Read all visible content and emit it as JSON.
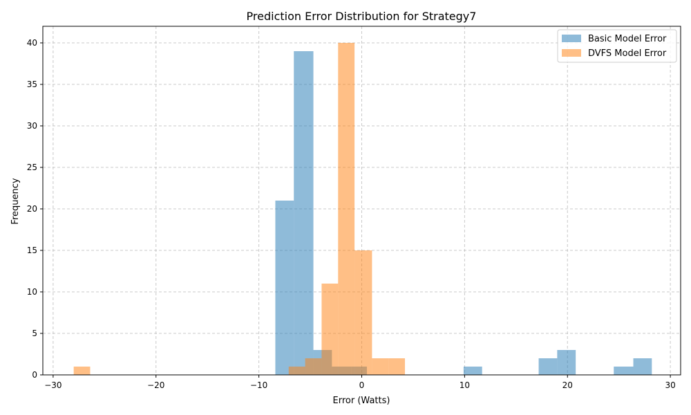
{
  "chart_data": {
    "type": "bar",
    "title": "Prediction Error Distribution for Strategy7",
    "xlabel": "Error (Watts)",
    "ylabel": "Frequency",
    "xlim": [
      -31,
      31
    ],
    "ylim": [
      0,
      42
    ],
    "xticks": [
      -30,
      -20,
      -10,
      0,
      10,
      20,
      30
    ],
    "yticks": [
      0,
      5,
      10,
      15,
      20,
      25,
      30,
      35,
      40
    ],
    "xtick_labels": [
      "−30",
      "−20",
      "−10",
      "0",
      "10",
      "20",
      "30"
    ],
    "ytick_labels": [
      "0",
      "5",
      "10",
      "15",
      "20",
      "25",
      "30",
      "35",
      "40"
    ],
    "grid": true,
    "legend_position": "top-right",
    "series": [
      {
        "name": "Basic Model Error",
        "color": "#1f77b4",
        "opacity": 0.5,
        "bins": [
          {
            "x0": -8.4,
            "x1": -6.6,
            "value": 21
          },
          {
            "x0": -6.6,
            "x1": -4.7,
            "value": 39
          },
          {
            "x0": -4.7,
            "x1": -2.9,
            "value": 3
          },
          {
            "x0": -2.9,
            "x1": -1.0,
            "value": 1
          },
          {
            "x0": -1.0,
            "x1": 0.5,
            "value": 1
          },
          {
            "x0": 9.9,
            "x1": 11.7,
            "value": 1
          },
          {
            "x0": 17.2,
            "x1": 19.0,
            "value": 2
          },
          {
            "x0": 19.0,
            "x1": 20.8,
            "value": 3
          },
          {
            "x0": 24.5,
            "x1": 26.4,
            "value": 1
          },
          {
            "x0": 26.4,
            "x1": 28.2,
            "value": 2
          }
        ]
      },
      {
        "name": "DVFS Model Error",
        "color": "#ff7f0e",
        "opacity": 0.5,
        "bins": [
          {
            "x0": -28.0,
            "x1": -26.4,
            "value": 1
          },
          {
            "x0": -7.1,
            "x1": -5.5,
            "value": 1
          },
          {
            "x0": -5.5,
            "x1": -3.9,
            "value": 2
          },
          {
            "x0": -3.9,
            "x1": -2.3,
            "value": 11
          },
          {
            "x0": -2.3,
            "x1": -0.7,
            "value": 40
          },
          {
            "x0": -0.7,
            "x1": 1.0,
            "value": 15
          },
          {
            "x0": 1.0,
            "x1": 2.6,
            "value": 2
          },
          {
            "x0": 2.6,
            "x1": 4.2,
            "value": 2
          }
        ]
      }
    ]
  }
}
